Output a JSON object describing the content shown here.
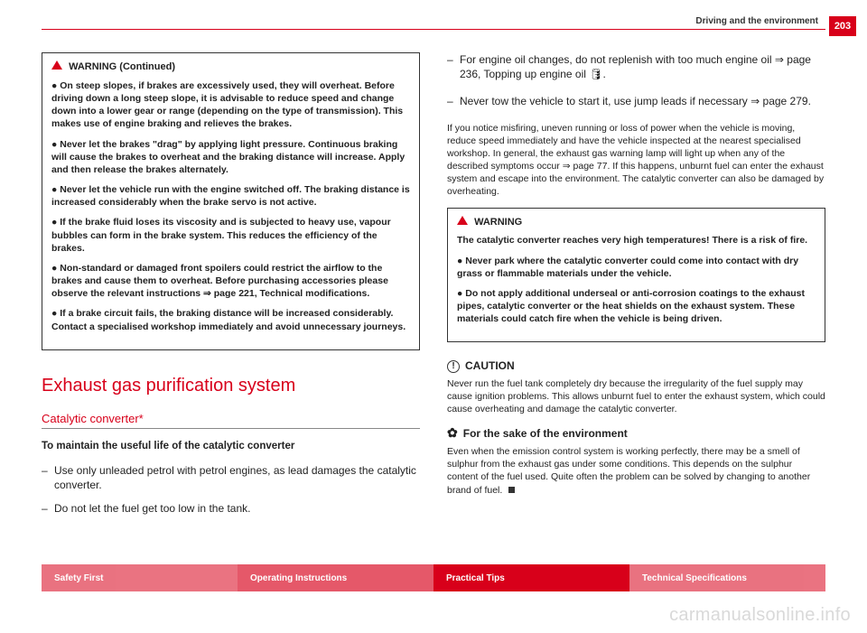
{
  "page_number": "203",
  "chapter": "Driving and the environment",
  "watermark": "carmanualsonline.info",
  "left": {
    "warning": {
      "title": "WARNING (Continued)",
      "items": [
        "●  On steep slopes, if brakes are excessively used, they will overheat. Before driving down a long steep slope, it is advisable to reduce speed and change down into a lower gear or range (depending on the type of transmission). This makes use of engine braking and relieves the brakes.",
        "●  Never let the brakes \"drag\" by applying light pressure. Continuous braking will cause the brakes to overheat and the braking distance will increase. Apply and then release the brakes alternately.",
        "●  Never let the vehicle run with the engine switched off. The braking distance is increased considerably when the brake servo is not active.",
        "●  If the brake fluid loses its viscosity and is subjected to heavy use, vapour bubbles can form in the brake system. This reduces the efficiency of the brakes.",
        "●  Non-standard or damaged front spoilers could restrict the airflow to the brakes and cause them to overheat. Before purchasing accessories please observe the relevant instructions ⇒ page 221, Technical modifications.",
        "●  If a brake circuit fails, the braking distance will be increased considerably. Contact a specialised workshop immediately and avoid unnecessary journeys."
      ]
    },
    "h1": "Exhaust gas purification system",
    "h2": "Catalytic converter*",
    "lead": "To maintain the useful life of the catalytic converter",
    "list": [
      "Use only unleaded petrol with petrol engines, as lead damages the catalytic converter.",
      "Do not let the fuel get too low in the tank."
    ]
  },
  "right": {
    "list": [
      "For engine oil changes, do not replenish with too much engine oil ⇒ page 236, Topping up engine oil 🛢.",
      "Never tow the vehicle to start it, use jump leads if necessary ⇒ page 279."
    ],
    "para1": "If you notice misfiring, uneven running or loss of power when the vehicle is moving, reduce speed immediately and have the vehicle inspected at the nearest specialised workshop. In general, the exhaust gas warning lamp will light up when any of the described symptoms occur ⇒ page 77. If this happens, unburnt fuel can enter the exhaust system and escape into the environment. The catalytic converter can also be damaged by overheating.",
    "warning": {
      "title": "WARNING",
      "items": [
        "The catalytic converter reaches very high temperatures! There is a risk of fire.",
        "●  Never park where the catalytic converter could come into contact with dry grass or flammable materials under the vehicle.",
        "●  Do not apply additional underseal or anti-corrosion coatings to the exhaust pipes, catalytic converter or the heat shields on the exhaust system. These materials could catch fire when the vehicle is being driven."
      ]
    },
    "caution_title": "CAUTION",
    "caution_text": "Never run the fuel tank completely dry because the irregularity of the fuel supply may cause ignition problems. This allows unburnt fuel to enter the exhaust system, which could cause overheating and damage the catalytic converter.",
    "env_title": "For the sake of the environment",
    "env_text": "Even when the emission control system is working perfectly, there may be a smell of sulphur from the exhaust gas under some conditions. This depends on the sulphur content of the fuel used. Quite often the problem can be solved by changing to another brand of fuel."
  },
  "footer": {
    "a": "Safety First",
    "b": "Operating Instructions",
    "c": "Practical Tips",
    "d": "Technical Specifications"
  }
}
